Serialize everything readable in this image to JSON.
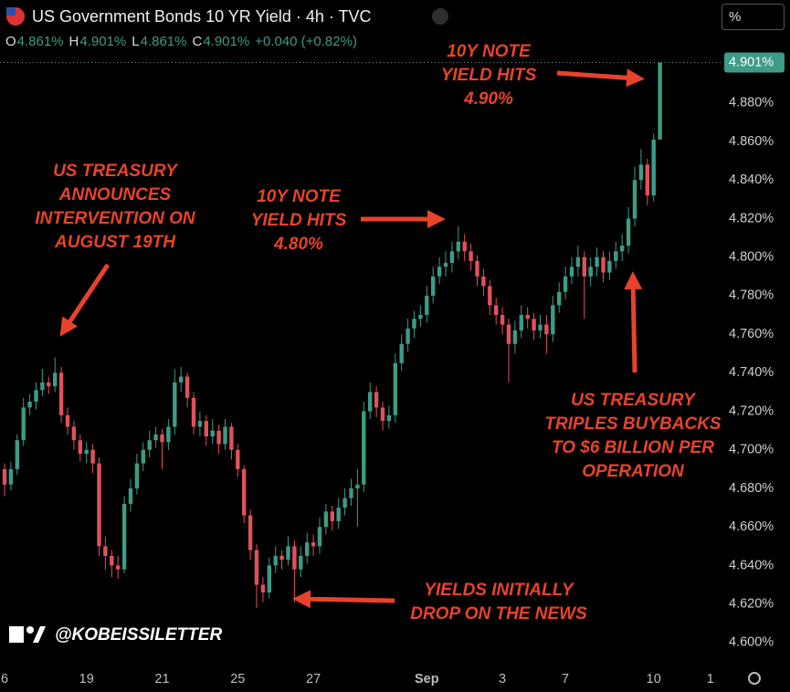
{
  "header": {
    "title": "US Government Bonds 10 YR Yield · 4h · TVC",
    "ohlc": [
      {
        "key": "O",
        "text": "4.861%"
      },
      {
        "key": "H",
        "text": "4.901%"
      },
      {
        "key": "L",
        "text": "4.861%"
      },
      {
        "key": "C",
        "text": "4.901%"
      }
    ],
    "change": "+0.040 (+0.82%)",
    "unit_button": "%"
  },
  "watermark": "@KOBEISSILETTER",
  "annotations": [
    [
      "10Y NOTE",
      "YIELD HITS",
      "4.90%"
    ],
    [
      "US TREASURY",
      "ANNOUNCES",
      "INTERVENTION ON",
      "AUGUST 19TH"
    ],
    [
      "10Y NOTE",
      "YIELD HITS",
      "4.80%"
    ],
    [
      "US TREASURY",
      "TRIPLES BUYBACKS",
      "TO $6 BILLION PER",
      "OPERATION"
    ],
    [
      "YIELDS INITIALLY",
      "DROP ON THE NEWS"
    ]
  ],
  "chart_data": {
    "type": "candlestick",
    "up_color": "#3d9b87",
    "down_color": "#e0525a",
    "last_label": "4.901%",
    "categories": [
      "6",
      null,
      null,
      null,
      null,
      null,
      null,
      null,
      null,
      null,
      null,
      null,
      null,
      "19",
      null,
      null,
      null,
      null,
      null,
      null,
      null,
      null,
      null,
      null,
      null,
      "21",
      null,
      null,
      null,
      null,
      null,
      null,
      null,
      null,
      null,
      null,
      null,
      "25",
      null,
      null,
      null,
      null,
      null,
      null,
      null,
      null,
      null,
      null,
      null,
      "27",
      null,
      null,
      null,
      null,
      null,
      null,
      null,
      null,
      null,
      null,
      null,
      null,
      null,
      null,
      null,
      null,
      null,
      "Sep",
      null,
      null,
      null,
      null,
      null,
      null,
      null,
      null,
      null,
      null,
      null,
      "3",
      null,
      null,
      null,
      null,
      null,
      null,
      null,
      null,
      null,
      "7",
      null,
      null,
      null,
      null,
      null,
      null,
      null,
      null,
      null,
      null,
      null,
      null,
      null,
      "10",
      null,
      null,
      null,
      null,
      null,
      null,
      null,
      null,
      "1"
    ],
    "open": [
      4.69,
      4.682,
      4.69,
      4.705,
      4.722,
      4.725,
      4.731,
      4.735,
      4.733,
      4.74,
      4.718,
      4.712,
      4.705,
      4.698,
      4.7,
      4.693,
      4.65,
      4.645,
      4.64,
      4.638,
      4.672,
      4.68,
      4.693,
      4.7,
      4.705,
      4.708,
      4.704,
      4.712,
      4.735,
      4.738,
      4.727,
      4.712,
      4.715,
      4.707,
      4.71,
      4.703,
      4.712,
      4.7,
      4.69,
      4.666,
      4.648,
      4.63,
      4.626,
      4.64,
      4.645,
      4.643,
      4.65,
      4.638,
      4.645,
      4.652,
      4.65,
      4.66,
      4.668,
      4.663,
      4.67,
      4.675,
      4.68,
      4.682,
      4.72,
      4.73,
      4.722,
      4.715,
      4.718,
      4.745,
      4.755,
      4.763,
      4.768,
      4.77,
      4.78,
      4.79,
      4.795,
      4.797,
      4.803,
      4.808,
      4.803,
      4.798,
      4.79,
      4.785,
      4.775,
      4.77,
      4.765,
      4.755,
      4.762,
      4.77,
      4.768,
      4.762,
      4.765,
      4.76,
      4.775,
      4.782,
      4.79,
      4.795,
      4.8,
      4.79,
      4.795,
      4.8,
      4.792,
      4.798,
      4.803,
      4.806,
      4.82,
      4.84,
      4.848,
      4.832,
      4.861,
      null,
      null,
      null,
      null,
      null,
      null,
      null,
      null
    ],
    "high": [
      4.693,
      4.694,
      4.708,
      4.727,
      4.729,
      4.735,
      4.742,
      4.738,
      4.748,
      4.743,
      4.722,
      4.715,
      4.708,
      4.704,
      4.703,
      4.696,
      4.655,
      4.648,
      4.645,
      4.676,
      4.685,
      4.698,
      4.704,
      4.71,
      4.712,
      4.711,
      4.716,
      4.742,
      4.743,
      4.74,
      4.73,
      4.72,
      4.718,
      4.716,
      4.713,
      4.716,
      4.714,
      4.703,
      4.692,
      4.669,
      4.651,
      4.634,
      4.644,
      4.65,
      4.648,
      4.655,
      4.653,
      4.65,
      4.657,
      4.656,
      4.665,
      4.672,
      4.671,
      4.675,
      4.68,
      4.685,
      4.69,
      4.725,
      4.735,
      4.733,
      4.725,
      4.723,
      4.75,
      4.76,
      4.768,
      4.772,
      4.775,
      4.785,
      4.795,
      4.8,
      4.803,
      4.808,
      4.816,
      4.812,
      4.807,
      4.801,
      4.794,
      4.788,
      4.779,
      4.774,
      4.768,
      4.767,
      4.775,
      4.774,
      4.771,
      4.77,
      4.77,
      4.78,
      4.787,
      4.795,
      4.8,
      4.806,
      4.803,
      4.8,
      4.805,
      4.803,
      4.803,
      4.808,
      4.812,
      4.826,
      4.847,
      4.856,
      4.851,
      4.864,
      4.901,
      null,
      null,
      null,
      null,
      null,
      null,
      null,
      null
    ],
    "low": [
      4.676,
      4.679,
      4.687,
      4.702,
      4.718,
      4.721,
      4.728,
      4.729,
      4.73,
      4.714,
      4.708,
      4.7,
      4.694,
      4.693,
      4.688,
      4.645,
      4.638,
      4.634,
      4.633,
      4.636,
      4.668,
      4.677,
      4.689,
      4.696,
      4.701,
      4.69,
      4.7,
      4.708,
      4.73,
      4.722,
      4.708,
      4.707,
      4.702,
      4.703,
      4.698,
      4.7,
      4.695,
      4.686,
      4.662,
      4.643,
      4.618,
      4.621,
      4.623,
      4.636,
      4.638,
      4.64,
      4.621,
      4.634,
      4.641,
      4.645,
      4.646,
      4.656,
      4.658,
      4.659,
      4.666,
      4.671,
      4.66,
      4.678,
      4.716,
      4.717,
      4.71,
      4.711,
      4.714,
      4.741,
      4.751,
      4.758,
      4.764,
      4.766,
      4.776,
      4.786,
      4.79,
      4.792,
      4.799,
      4.798,
      4.793,
      4.785,
      4.78,
      4.77,
      4.765,
      4.76,
      4.735,
      4.75,
      4.758,
      4.763,
      4.757,
      4.758,
      4.75,
      4.756,
      4.771,
      4.778,
      4.786,
      4.79,
      4.768,
      4.785,
      4.79,
      4.787,
      4.788,
      4.794,
      4.798,
      4.802,
      4.816,
      4.835,
      4.827,
      4.829,
      4.861,
      null,
      null,
      null,
      null,
      null,
      null,
      null,
      null
    ],
    "close": [
      4.682,
      4.69,
      4.705,
      4.722,
      4.725,
      4.731,
      4.735,
      4.733,
      4.74,
      4.718,
      4.712,
      4.705,
      4.698,
      4.7,
      4.693,
      4.65,
      4.645,
      4.64,
      4.638,
      4.672,
      4.68,
      4.693,
      4.7,
      4.705,
      4.708,
      4.704,
      4.712,
      4.735,
      4.738,
      4.727,
      4.712,
      4.715,
      4.707,
      4.71,
      4.703,
      4.712,
      4.7,
      4.69,
      4.666,
      4.648,
      4.63,
      4.626,
      4.64,
      4.645,
      4.643,
      4.65,
      4.638,
      4.645,
      4.652,
      4.65,
      4.66,
      4.668,
      4.663,
      4.67,
      4.675,
      4.68,
      4.682,
      4.72,
      4.73,
      4.722,
      4.715,
      4.718,
      4.745,
      4.755,
      4.763,
      4.768,
      4.77,
      4.78,
      4.79,
      4.795,
      4.797,
      4.803,
      4.808,
      4.803,
      4.798,
      4.79,
      4.785,
      4.775,
      4.77,
      4.765,
      4.755,
      4.762,
      4.77,
      4.768,
      4.762,
      4.765,
      4.76,
      4.775,
      4.782,
      4.79,
      4.795,
      4.8,
      4.79,
      4.795,
      4.8,
      4.792,
      4.798,
      4.803,
      4.806,
      4.82,
      4.84,
      4.848,
      4.832,
      4.861,
      4.901,
      null,
      null,
      null,
      null,
      null,
      null,
      null,
      null
    ],
    "ylim": [
      4.59,
      4.905
    ],
    "yticks": [
      {
        "value": 4.6,
        "label": "4.600%"
      },
      {
        "value": 4.62,
        "label": "4.620%"
      },
      {
        "value": 4.64,
        "label": "4.640%"
      },
      {
        "value": 4.66,
        "label": "4.660%"
      },
      {
        "value": 4.68,
        "label": "4.680%"
      },
      {
        "value": 4.7,
        "label": "4.700%"
      },
      {
        "value": 4.72,
        "label": "4.720%"
      },
      {
        "value": 4.74,
        "label": "4.740%"
      },
      {
        "value": 4.76,
        "label": "4.760%"
      },
      {
        "value": 4.78,
        "label": "4.780%"
      },
      {
        "value": 4.8,
        "label": "4.800%"
      },
      {
        "value": 4.82,
        "label": "4.820%"
      },
      {
        "value": 4.84,
        "label": "4.840%"
      },
      {
        "value": 4.86,
        "label": "4.860%"
      },
      {
        "value": 4.88,
        "label": "4.880%"
      }
    ]
  }
}
